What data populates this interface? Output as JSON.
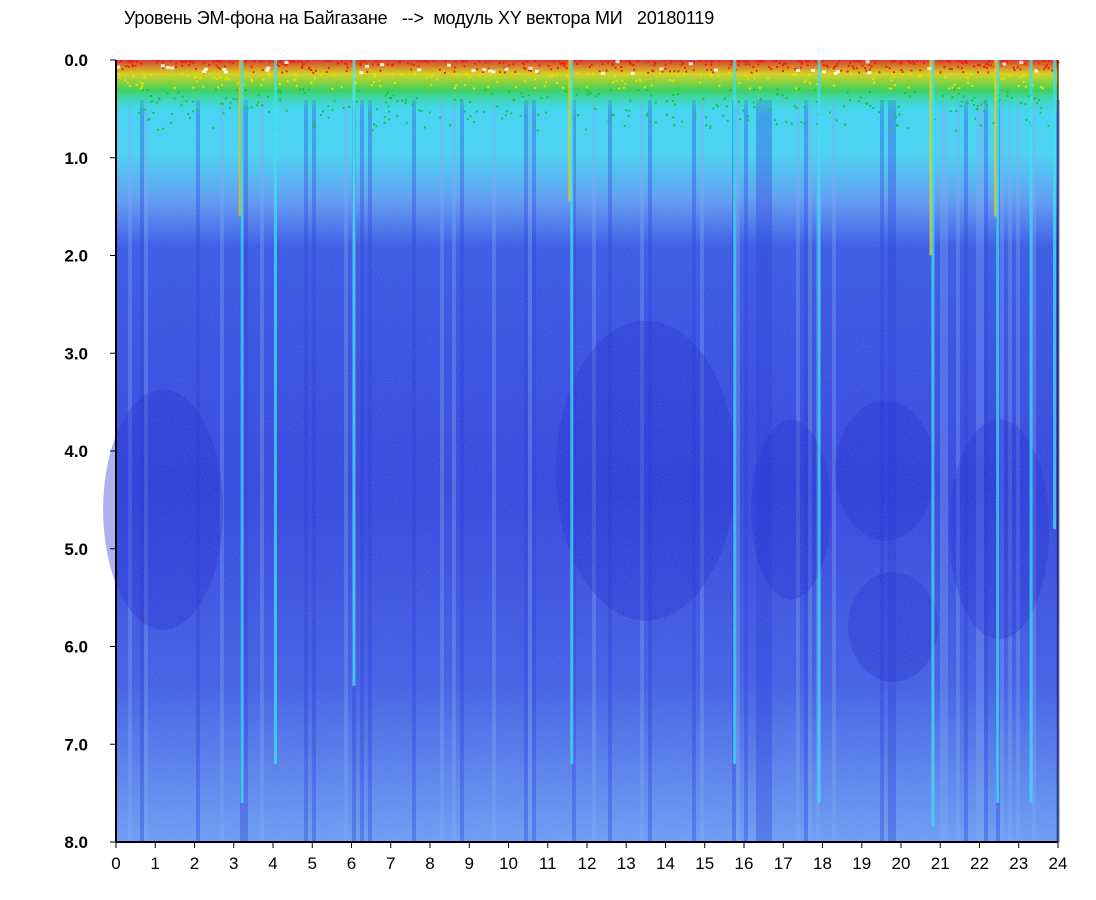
{
  "chart_data": {
    "type": "heatmap",
    "title": "Уровень ЭМ-фона на Байгазане   -->  модуль XY вектора МИ   20180119",
    "xlabel": "",
    "ylabel": "",
    "x_ticks": [
      "0",
      "1",
      "2",
      "3",
      "4",
      "5",
      "6",
      "7",
      "8",
      "9",
      "10",
      "11",
      "12",
      "13",
      "14",
      "15",
      "16",
      "17",
      "18",
      "19",
      "20",
      "21",
      "22",
      "23",
      "24"
    ],
    "y_ticks": [
      "0.0",
      "1.0",
      "2.0",
      "3.0",
      "4.0",
      "5.0",
      "6.0",
      "7.0",
      "8.0"
    ],
    "xlim": [
      0,
      24
    ],
    "ylim": [
      0,
      8
    ],
    "y_inverted": true,
    "grid": false,
    "colors": {
      "background": "#1a2fd8",
      "low": "#2a3fe0",
      "mid": "#7fa0f0",
      "cyan": "#3fe6f2",
      "green": "#20c040",
      "yellow": "#f0f000",
      "red": "#f02010"
    }
  }
}
